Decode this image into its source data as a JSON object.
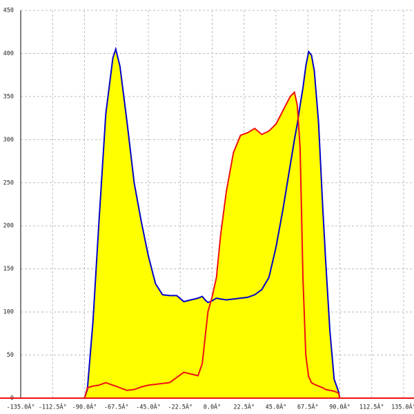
{
  "chart_data": {
    "type": "area",
    "x": [
      -90,
      -88,
      -84,
      -80,
      -75,
      -70,
      -68,
      -65,
      -60,
      -55,
      -50,
      -45,
      -40,
      -35,
      -30,
      -25,
      -20,
      -15,
      -10,
      -7,
      -5,
      -3,
      0,
      3,
      6,
      10,
      15,
      20,
      25,
      30,
      35,
      40,
      45,
      50,
      55,
      58,
      60,
      62,
      64,
      66,
      68,
      70,
      72,
      75,
      78,
      80,
      83,
      86,
      89,
      90
    ],
    "series": [
      {
        "color": "#0000cc",
        "values": [
          0,
          10,
          90,
          200,
          330,
          395,
          405,
          385,
          320,
          250,
          205,
          165,
          133,
          120,
          119,
          119,
          112,
          114,
          116,
          118,
          114,
          111,
          113,
          116,
          115,
          114,
          115,
          116,
          117,
          120,
          126,
          140,
          175,
          220,
          270,
          300,
          318,
          340,
          360,
          385,
          402,
          398,
          380,
          320,
          220,
          160,
          78,
          22,
          8,
          0
        ]
      },
      {
        "color": "#ee1111",
        "values": [
          0,
          12,
          14,
          15,
          18,
          15,
          14,
          12,
          9,
          10,
          13,
          15,
          16,
          17,
          18,
          24,
          30,
          28,
          26,
          40,
          70,
          100,
          118,
          140,
          190,
          240,
          285,
          305,
          308,
          313,
          306,
          310,
          318,
          334,
          350,
          355,
          340,
          290,
          140,
          50,
          25,
          18,
          16,
          14,
          12,
          10,
          9,
          8,
          6,
          0
        ]
      }
    ],
    "fill": "#ffff00",
    "xlim": [
      -135,
      135
    ],
    "xticks": [
      {
        "value": -135,
        "label": "-135.0Â°"
      },
      {
        "value": -112.5,
        "label": "-112.5Â°"
      },
      {
        "value": -90,
        "label": "-90.0Â°"
      },
      {
        "value": -67.5,
        "label": "-67.5Â°"
      },
      {
        "value": -45,
        "label": "-45.0Â°"
      },
      {
        "value": -22.5,
        "label": "-22.5Â°"
      },
      {
        "value": 0,
        "label": "0.0Â°"
      },
      {
        "value": 22.5,
        "label": "22.5Â°"
      },
      {
        "value": 45,
        "label": "45.0Â°"
      },
      {
        "value": 67.5,
        "label": "67.5Â°"
      },
      {
        "value": 90,
        "label": "90.0Â°"
      },
      {
        "value": 112.5,
        "label": "112.5Â°"
      },
      {
        "value": 135,
        "label": "135.0Â°"
      }
    ],
    "ylim": [
      0,
      450
    ],
    "yticks": [
      0,
      50,
      100,
      150,
      200,
      250,
      300,
      350,
      400,
      450
    ],
    "grid": true
  }
}
